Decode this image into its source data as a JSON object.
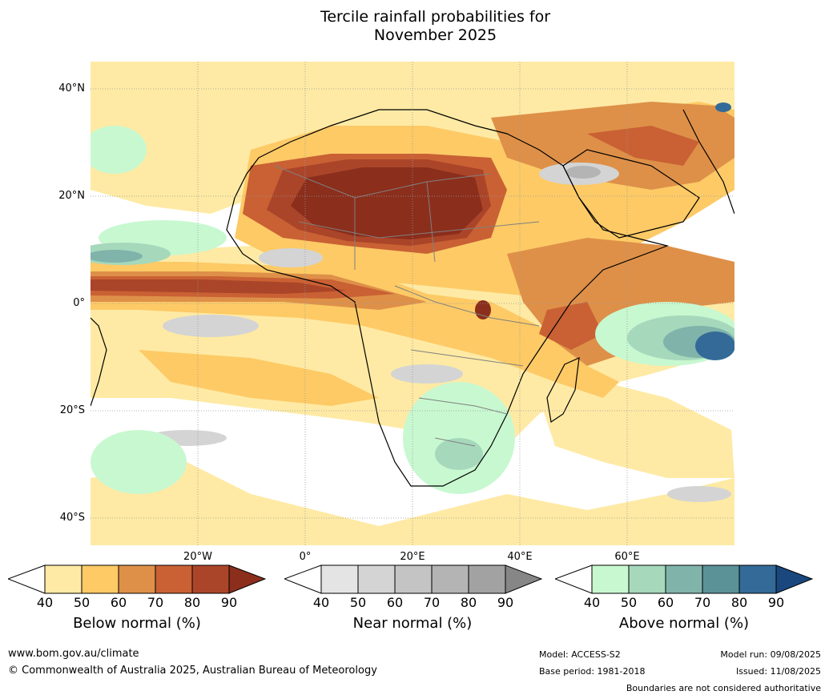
{
  "title": {
    "line1": "Tercile rainfall probabilities for",
    "line2": "November 2025"
  },
  "map": {
    "lat_labels": [
      "40°N",
      "20°N",
      "0°",
      "20°S",
      "40°S"
    ],
    "lon_labels": [
      "20°W",
      "0°",
      "20°E",
      "40°E",
      "60°E"
    ],
    "land_boundaries_color": "#000000",
    "country_borders_color": "#808080",
    "gridline_color": "#9a9a9a"
  },
  "colorbars": [
    {
      "title": "Below normal (%)",
      "ticks": [
        "40",
        "50",
        "60",
        "70",
        "80",
        "90"
      ],
      "colors": [
        "#ffffff",
        "#feeaa4",
        "#fdca66",
        "#de9048",
        "#c96134",
        "#ab4529",
        "#8b2e1c"
      ]
    },
    {
      "title": "Near normal (%)",
      "ticks": [
        "40",
        "50",
        "60",
        "70",
        "80",
        "90"
      ],
      "colors": [
        "#ffffff",
        "#e4e4e4",
        "#d4d4d4",
        "#c4c4c4",
        "#b4b4b4",
        "#a2a2a2",
        "#868686"
      ]
    },
    {
      "title": "Above normal (%)",
      "ticks": [
        "40",
        "50",
        "60",
        "70",
        "80",
        "90"
      ],
      "colors": [
        "#ffffff",
        "#c8f8d0",
        "#a6d8bc",
        "#80b4aa",
        "#5a9298",
        "#336a98",
        "#19477e"
      ]
    }
  ],
  "footer": {
    "website": "www.bom.gov.au/climate",
    "copyright": "© Commonwealth of Australia 2025, Australian Bureau of Meteorology",
    "model": "Model: ACCESS-S2",
    "base_period": "Base period: 1981-2018",
    "model_run": "Model run: 09/08/2025",
    "issued": "Issued: 11/08/2025",
    "disclaimer": "Boundaries are not considered authoritative"
  }
}
